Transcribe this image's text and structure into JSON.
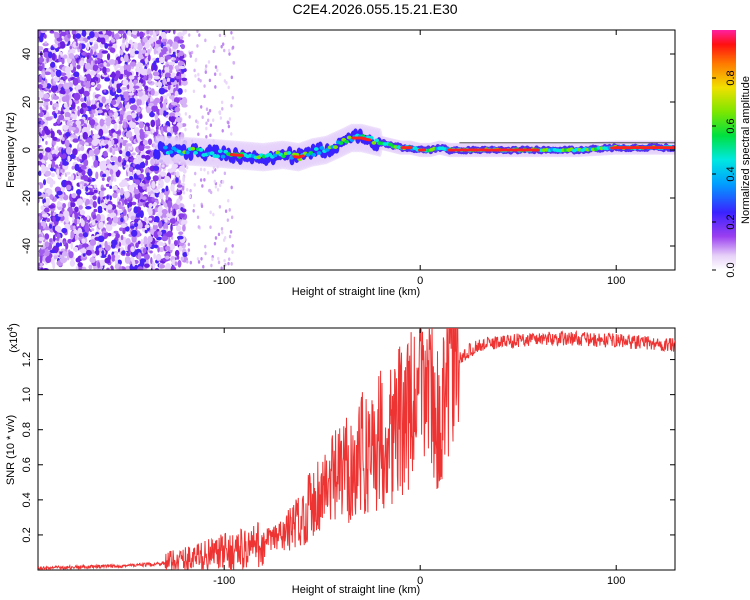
{
  "title": "C2E4.2026.055.15.21.E30",
  "chart_data": [
    {
      "type": "heatmap",
      "xlabel": "Height of straight line (km)",
      "ylabel": "Frequency (Hz)",
      "xlim": [
        -195,
        130
      ],
      "ylim": [
        -50,
        50
      ],
      "xticks": [
        -100,
        0,
        100
      ],
      "yticks": [
        -40,
        -20,
        0,
        20,
        40
      ],
      "colorbar": {
        "label": "Normalized spectral amplitude",
        "range": [
          0.0,
          1.0
        ],
        "ticks": [
          0.0,
          0.2,
          0.4,
          0.6,
          0.8
        ]
      },
      "ridge": {
        "x": [
          -130,
          -110,
          -95,
          -80,
          -70,
          -62,
          -55,
          -48,
          -40,
          -35,
          -30,
          -25,
          -20,
          -15,
          -10,
          -5,
          0,
          5,
          10,
          15,
          20,
          40,
          60,
          80,
          100,
          130
        ],
        "y": [
          0,
          -1,
          -2,
          -3,
          -2,
          -3,
          -1,
          0,
          3,
          5,
          5,
          4,
          3,
          2,
          1,
          1,
          0,
          0,
          1,
          0,
          0,
          0,
          0,
          0,
          1,
          1
        ]
      }
    },
    {
      "type": "line",
      "xlabel": "Height of straight line (km)",
      "ylabel": "SNR (10 * v/v)",
      "y_multiplier": "(x10",
      "y_exponent": "4",
      "y_multiplier_close": ")",
      "xlim": [
        -195,
        130
      ],
      "ylim": [
        0,
        1.38
      ],
      "xticks": [
        -100,
        0,
        100
      ],
      "yticks": [
        0.2,
        0.4,
        0.6,
        0.8,
        1.0,
        1.2
      ],
      "series": [
        {
          "name": "SNR",
          "color": "#ee3333",
          "x": [
            -195,
            -180,
            -160,
            -140,
            -130,
            -120,
            -110,
            -100,
            -90,
            -80,
            -70,
            -60,
            -55,
            -50,
            -45,
            -40,
            -35,
            -30,
            -25,
            -20,
            -15,
            -10,
            -5,
            0,
            5,
            8,
            10,
            12,
            14,
            16,
            20,
            25,
            30,
            40,
            50,
            60,
            70,
            80,
            90,
            100,
            110,
            120,
            130
          ],
          "values": [
            0.01,
            0.015,
            0.02,
            0.03,
            0.04,
            0.06,
            0.08,
            0.1,
            0.12,
            0.15,
            0.2,
            0.3,
            0.4,
            0.45,
            0.5,
            0.55,
            0.6,
            0.65,
            0.7,
            0.75,
            0.8,
            0.85,
            0.9,
            1.0,
            1.1,
            0.9,
            0.7,
            0.9,
            1.05,
            1.15,
            1.2,
            1.25,
            1.28,
            1.3,
            1.31,
            1.32,
            1.32,
            1.32,
            1.31,
            1.31,
            1.3,
            1.29,
            1.28
          ]
        }
      ]
    }
  ]
}
